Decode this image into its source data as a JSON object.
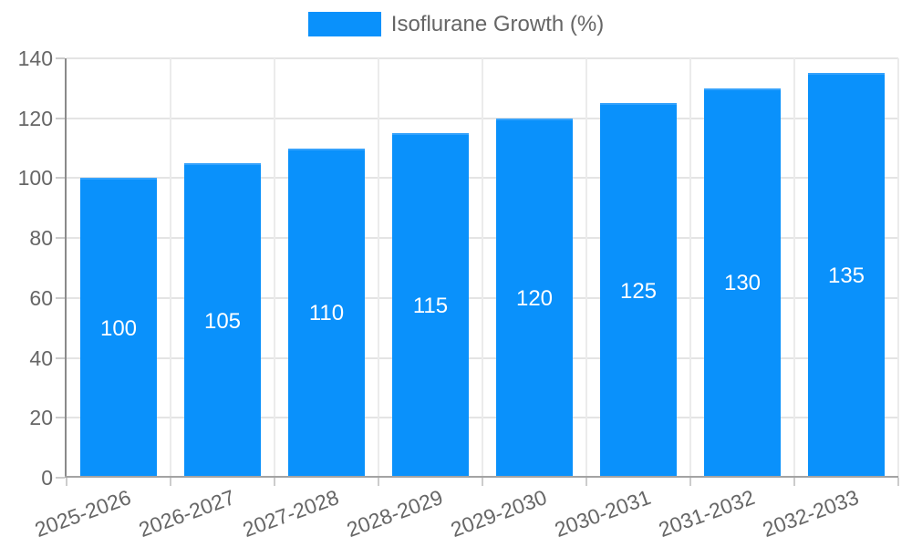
{
  "chart_data": {
    "type": "bar",
    "title": "",
    "legend": {
      "label": "Isoflurane Growth (%)",
      "position": "top"
    },
    "categories": [
      "2025-2026",
      "2026-2027",
      "2027-2028",
      "2028-2029",
      "2029-2030",
      "2030-2031",
      "2031-2032",
      "2032-2033"
    ],
    "series": [
      {
        "name": "Isoflurane Growth (%)",
        "values": [
          100,
          105,
          110,
          115,
          120,
          125,
          130,
          135
        ]
      }
    ],
    "value_labels": [
      "100",
      "105",
      "110",
      "115",
      "120",
      "125",
      "130",
      "135"
    ],
    "xlabel": "",
    "ylabel": "",
    "ylim": [
      0,
      140
    ],
    "yticks": [
      0,
      20,
      40,
      60,
      80,
      100,
      120,
      140
    ],
    "grid": true,
    "value_labels_visible": true,
    "colors": {
      "bar": "#0a91fb",
      "bar_top_border": "#35a2fc",
      "grid_horizontal": "#e4e4e4",
      "grid_vertical": "#ebebeb",
      "axis_y": "#8a8a8a",
      "axis_x": "#a3a3a3",
      "tick": "#cccccc",
      "label_text": "#666666",
      "value_label_text": "#ffffff",
      "background": "#ffffff"
    }
  }
}
